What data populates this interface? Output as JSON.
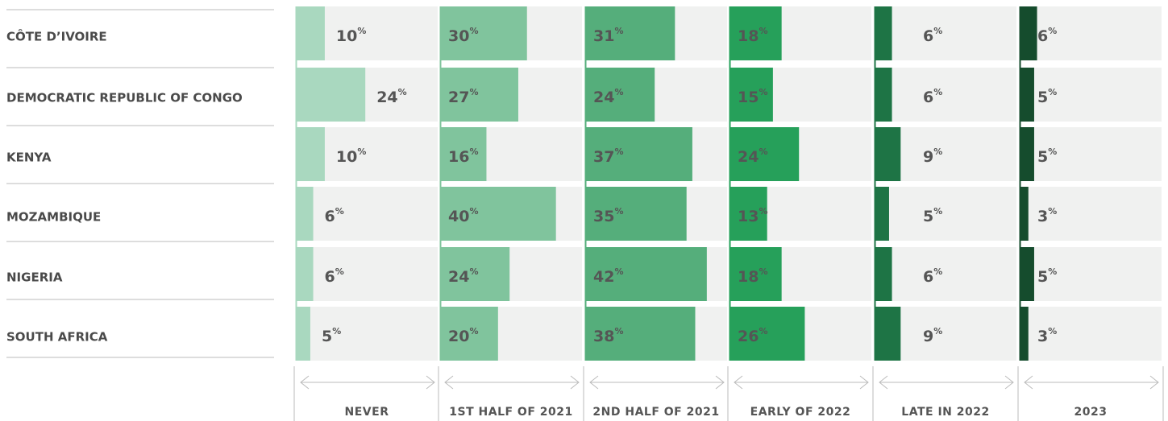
{
  "chart_data": {
    "type": "bar",
    "orientation": "horizontal",
    "unit": "%",
    "categories": [
      "CÔTE D’IVOIRE",
      "DEMOCRATIC REPUBLIC OF CONGO",
      "KENYA",
      "MOZAMBIQUE",
      "NIGERIA",
      "SOUTH AFRICA"
    ],
    "series": [
      {
        "name": "NEVER",
        "color": "#a9d8bf",
        "values": [
          10,
          24,
          10,
          6,
          6,
          5
        ]
      },
      {
        "name": "1ST HALF OF 2021",
        "color": "#80c49d",
        "values": [
          30,
          27,
          16,
          40,
          24,
          20
        ]
      },
      {
        "name": "2ND HALF OF 2021",
        "color": "#55ae7b",
        "values": [
          31,
          24,
          37,
          35,
          42,
          38
        ]
      },
      {
        "name": "EARLY OF 2022",
        "color": "#26a05a",
        "values": [
          18,
          15,
          24,
          13,
          18,
          26
        ]
      },
      {
        "name": "LATE IN 2022",
        "color": "#1e7445",
        "values": [
          6,
          6,
          9,
          5,
          6,
          9
        ]
      },
      {
        "name": "2023",
        "color": "#154c2d",
        "values": [
          6,
          5,
          5,
          3,
          5,
          3
        ]
      }
    ],
    "xlim": [
      0,
      49
    ]
  }
}
